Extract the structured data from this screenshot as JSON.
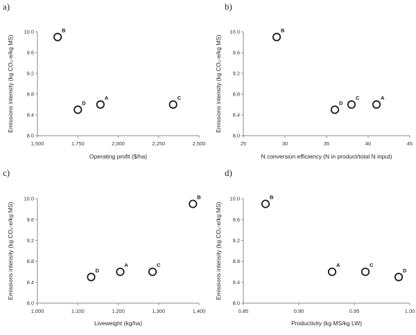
{
  "chart_data": [
    {
      "type": "scatter",
      "panel_label": "a)",
      "title": "",
      "xlabel": "Operating profit ($/ha)",
      "ylabel": "Emissions intensity (kg CO₂-e/kg MS)",
      "xlim": [
        1500,
        2500
      ],
      "ylim": [
        8.0,
        10.0
      ],
      "xticks": [
        1500,
        1750,
        2000,
        2250,
        2500
      ],
      "xtick_labels": [
        "1,500",
        "1,750",
        "2,000",
        "2,250",
        "2,500"
      ],
      "yticks": [
        8.0,
        8.4,
        8.8,
        9.2,
        9.6,
        10.0
      ],
      "ytick_labels": [
        "8.0",
        "8.4",
        "8.8",
        "9.2",
        "9.6",
        "10.0"
      ],
      "grid": false,
      "points": [
        {
          "label": "B",
          "x": 1625,
          "y": 9.9
        },
        {
          "label": "D",
          "x": 1750,
          "y": 8.5
        },
        {
          "label": "A",
          "x": 1890,
          "y": 8.6
        },
        {
          "label": "C",
          "x": 2340,
          "y": 8.6
        }
      ]
    },
    {
      "type": "scatter",
      "panel_label": "b)",
      "title": "",
      "xlabel": "N conversion efficiency (N in product/total N input)",
      "ylabel": "Emissions intensity (kg CO₂-e/kg MS)",
      "xlim": [
        25,
        45
      ],
      "ylim": [
        8.0,
        10.0
      ],
      "xticks": [
        25,
        30,
        35,
        40,
        45
      ],
      "xtick_labels": [
        "25",
        "30",
        "35",
        "40",
        "45"
      ],
      "yticks": [
        8.0,
        8.4,
        8.8,
        9.2,
        9.6,
        10.0
      ],
      "ytick_labels": [
        "8.0",
        "8.4",
        "8.8",
        "9.2",
        "9.6",
        "10.0"
      ],
      "grid": false,
      "points": [
        {
          "label": "B",
          "x": 29,
          "y": 9.9
        },
        {
          "label": "D",
          "x": 36,
          "y": 8.5
        },
        {
          "label": "C",
          "x": 38,
          "y": 8.6
        },
        {
          "label": "A",
          "x": 41,
          "y": 8.6
        }
      ]
    },
    {
      "type": "scatter",
      "panel_label": "c)",
      "title": "",
      "xlabel": "Liveweight (kg/ha)",
      "ylabel": "Emissions intensity (kg CO₂-e/kg MS)",
      "xlim": [
        1000,
        1400
      ],
      "ylim": [
        8.0,
        10.0
      ],
      "xticks": [
        1000,
        1100,
        1200,
        1300,
        1400
      ],
      "xtick_labels": [
        "1,000",
        "1,100",
        "1,200",
        "1,300",
        "1,400"
      ],
      "yticks": [
        8.0,
        8.4,
        8.8,
        9.2,
        9.6,
        10.0
      ],
      "ytick_labels": [
        "8.0",
        "8.4",
        "8.8",
        "9.2",
        "9.6",
        "10.0"
      ],
      "grid": false,
      "points": [
        {
          "label": "D",
          "x": 1133,
          "y": 8.5
        },
        {
          "label": "A",
          "x": 1205,
          "y": 8.6
        },
        {
          "label": "C",
          "x": 1285,
          "y": 8.6
        },
        {
          "label": "B",
          "x": 1385,
          "y": 9.9
        }
      ]
    },
    {
      "type": "scatter",
      "panel_label": "d)",
      "title": "",
      "xlabel": "Productivity (kg MS/kg LW)",
      "ylabel": "Emissions intensity (kg CO₂-e/kg MS)",
      "xlim": [
        0.85,
        1.0
      ],
      "ylim": [
        8.0,
        10.0
      ],
      "xticks": [
        0.85,
        0.9,
        0.95,
        1.0
      ],
      "xtick_labels": [
        "0.85",
        "0.90",
        "0.95",
        "1.00"
      ],
      "yticks": [
        8.0,
        8.4,
        8.8,
        9.2,
        9.6,
        10.0
      ],
      "ytick_labels": [
        "8.0",
        "8.4",
        "8.8",
        "9.2",
        "9.6",
        "10.0"
      ],
      "grid": false,
      "points": [
        {
          "label": "B",
          "x": 0.87,
          "y": 9.9
        },
        {
          "label": "A",
          "x": 0.93,
          "y": 8.6
        },
        {
          "label": "C",
          "x": 0.96,
          "y": 8.6
        },
        {
          "label": "D",
          "x": 0.99,
          "y": 8.5
        }
      ]
    }
  ]
}
